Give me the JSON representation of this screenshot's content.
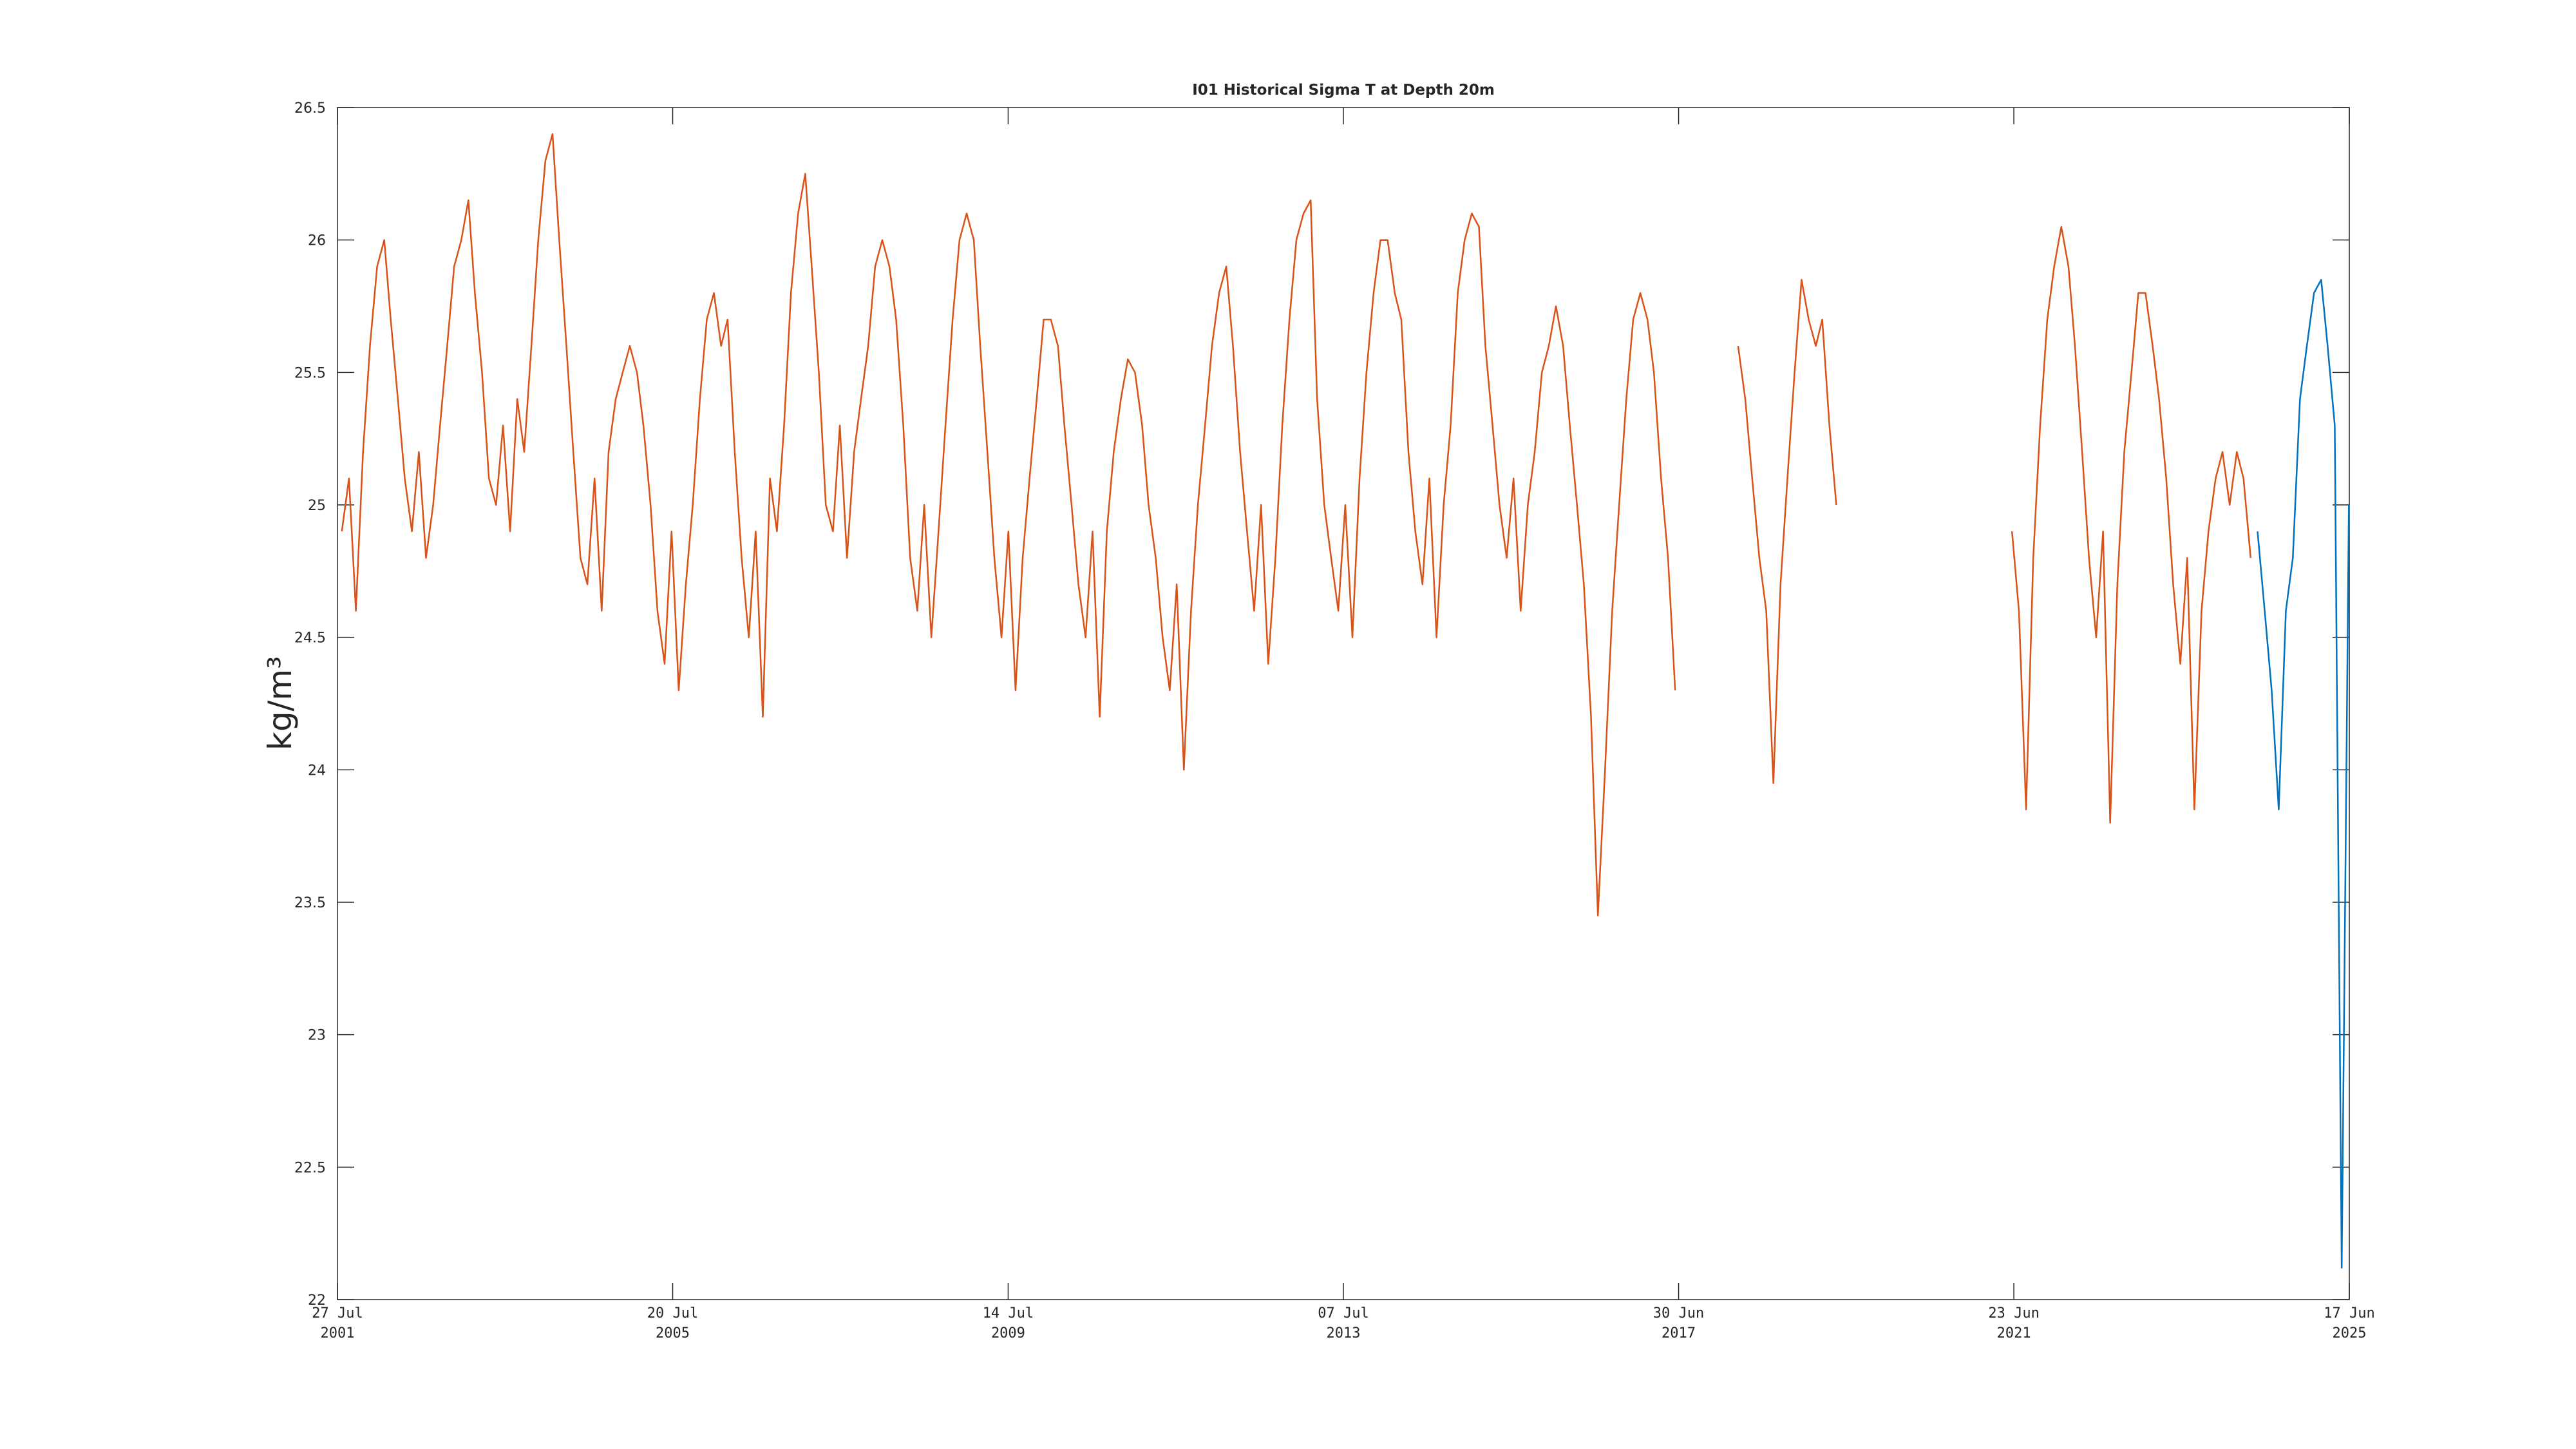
{
  "chart_data": {
    "type": "line",
    "title": "I01 Historical Sigma T at Depth 20m",
    "ylabel": "kg/m³",
    "xlim": [
      "2001-07-27",
      "2025-06-17"
    ],
    "xticks": [
      {
        "value": "2001-07-27",
        "label": "27 Jul\n2001"
      },
      {
        "value": "2005-07-20",
        "label": "20 Jul\n2005"
      },
      {
        "value": "2009-07-14",
        "label": "14 Jul\n2009"
      },
      {
        "value": "2013-07-07",
        "label": "07 Jul\n2013"
      },
      {
        "value": "2017-06-30",
        "label": "30 Jun\n2017"
      },
      {
        "value": "2021-06-23",
        "label": "23 Jun\n2021"
      },
      {
        "value": "2025-06-17",
        "label": "17 Jun\n2025"
      }
    ],
    "ylim": [
      22,
      26.5
    ],
    "yticks": [
      22,
      22.5,
      23,
      23.5,
      24,
      24.5,
      25,
      25.5,
      26,
      26.5
    ],
    "box": true,
    "series": [
      {
        "color": "#D95319",
        "x": [
          "2001-08-15",
          "2001-09-15",
          "2001-10-15",
          "2001-11-15",
          "2001-12-15",
          "2002-01-15",
          "2002-02-15",
          "2002-03-15",
          "2002-04-15",
          "2002-05-15",
          "2002-06-15",
          "2002-07-15",
          "2002-08-15",
          "2002-09-15",
          "2002-10-15",
          "2002-11-15",
          "2002-12-15",
          "2003-01-15",
          "2003-02-15",
          "2003-03-15",
          "2003-04-15",
          "2003-05-15",
          "2003-06-15",
          "2003-07-15",
          "2003-08-15",
          "2003-09-15",
          "2003-10-15",
          "2003-11-15",
          "2003-12-15",
          "2004-01-15",
          "2004-02-15",
          "2004-03-15",
          "2004-04-15",
          "2004-05-15",
          "2004-06-15",
          "2004-07-15",
          "2004-08-15",
          "2004-09-15",
          "2004-10-15",
          "2004-11-15",
          "2004-12-15",
          "2005-01-15",
          "2005-02-15",
          "2005-03-15",
          "2005-04-15",
          "2005-05-15",
          "2005-06-15",
          "2005-07-15",
          "2005-08-15",
          "2005-09-15",
          "2005-10-15",
          "2005-11-15",
          "2005-12-15",
          "2006-01-15",
          "2006-02-15",
          "2006-03-15",
          "2006-04-15",
          "2006-05-15",
          "2006-06-15",
          "2006-07-15",
          "2006-08-15",
          "2006-09-15",
          "2006-10-15",
          "2006-11-15",
          "2006-12-15",
          "2007-01-15",
          "2007-02-15",
          "2007-03-15",
          "2007-04-15",
          "2007-05-15",
          "2007-06-15",
          "2007-07-15",
          "2007-08-15",
          "2007-09-15",
          "2007-10-15",
          "2007-11-15",
          "2007-12-15",
          "2008-01-15",
          "2008-02-15",
          "2008-03-15",
          "2008-04-15",
          "2008-05-15",
          "2008-06-15",
          "2008-07-15",
          "2008-08-15",
          "2008-09-15",
          "2008-10-15",
          "2008-11-15",
          "2008-12-15",
          "2009-01-15",
          "2009-02-15",
          "2009-03-15",
          "2009-04-15",
          "2009-05-15",
          "2009-06-15",
          "2009-07-15",
          "2009-08-15",
          "2009-09-15",
          "2009-10-15",
          "2009-11-15",
          "2009-12-15",
          "2010-01-15",
          "2010-02-15",
          "2010-03-15",
          "2010-04-15",
          "2010-05-15",
          "2010-06-15",
          "2010-07-15",
          "2010-08-15",
          "2010-09-15",
          "2010-10-15",
          "2010-11-15",
          "2010-12-15",
          "2011-01-15",
          "2011-02-15",
          "2011-03-15",
          "2011-04-15",
          "2011-05-15",
          "2011-06-15",
          "2011-07-15",
          "2011-08-15",
          "2011-09-15",
          "2011-10-15",
          "2011-11-15",
          "2011-12-15",
          "2012-01-15",
          "2012-02-15",
          "2012-03-15",
          "2012-04-15",
          "2012-05-15",
          "2012-06-15",
          "2012-07-15",
          "2012-08-15",
          "2012-09-15",
          "2012-10-15",
          "2012-11-15",
          "2012-12-15",
          "2013-01-15",
          "2013-02-15",
          "2013-03-15",
          "2013-04-15",
          "2013-05-15",
          "2013-06-15",
          "2013-07-15",
          "2013-08-15",
          "2013-09-15",
          "2013-10-15",
          "2013-11-15",
          "2013-12-15",
          "2014-01-15",
          "2014-02-15",
          "2014-03-15",
          "2014-04-15",
          "2014-05-15",
          "2014-06-15",
          "2014-07-15",
          "2014-08-15",
          "2014-09-15",
          "2014-10-15",
          "2014-11-15",
          "2014-12-15",
          "2015-01-15",
          "2015-02-15",
          "2015-03-15",
          "2015-04-15",
          "2015-05-15",
          "2015-06-15",
          "2015-07-15",
          "2015-08-15",
          "2015-09-15",
          "2015-10-15",
          "2015-11-15",
          "2015-12-15",
          "2016-01-15",
          "2016-02-15",
          "2016-03-15",
          "2016-04-15",
          "2016-05-15",
          "2016-06-15",
          "2016-07-15",
          "2016-08-15",
          "2016-09-15",
          "2016-10-15",
          "2016-11-15",
          "2016-12-15",
          "2017-01-15",
          "2017-02-15",
          "2017-03-15",
          "2017-04-15",
          "2017-05-15",
          "2017-06-15",
          "2017-10-15",
          "2018-03-15",
          "2018-04-15",
          "2018-05-15",
          "2018-06-15",
          "2018-07-15",
          "2018-08-15",
          "2018-09-15",
          "2018-10-15",
          "2018-11-15",
          "2018-12-15",
          "2019-01-15",
          "2019-02-15",
          "2019-03-15",
          "2019-04-15",
          "2019-05-15",
          "2020-06-15",
          "2021-06-15",
          "2021-07-15",
          "2021-08-15",
          "2021-09-15",
          "2021-10-15",
          "2021-11-15",
          "2021-12-15",
          "2022-01-15",
          "2022-02-15",
          "2022-03-15",
          "2022-04-15",
          "2022-05-15",
          "2022-06-15",
          "2022-07-15",
          "2022-08-15",
          "2022-09-15",
          "2022-10-15",
          "2022-11-15",
          "2022-12-15",
          "2023-01-15",
          "2023-02-15",
          "2023-03-15",
          "2023-04-15",
          "2023-05-15",
          "2023-06-15",
          "2023-07-15",
          "2023-08-15",
          "2023-09-15",
          "2023-10-15",
          "2023-11-15",
          "2023-12-15",
          "2024-01-15",
          "2024-02-15",
          "2024-03-15",
          "2024-04-15"
        ],
        "values": [
          24.9,
          25.1,
          24.6,
          25.2,
          25.6,
          25.9,
          26.0,
          25.7,
          25.4,
          25.1,
          24.9,
          25.2,
          24.8,
          25.0,
          25.3,
          25.6,
          25.9,
          26.0,
          26.15,
          25.8,
          25.5,
          25.1,
          25.0,
          25.3,
          24.9,
          25.4,
          25.2,
          25.6,
          26.0,
          26.3,
          26.4,
          26.0,
          25.6,
          25.2,
          24.8,
          24.7,
          25.1,
          24.6,
          25.2,
          25.4,
          25.5,
          25.6,
          25.5,
          25.3,
          25.0,
          24.6,
          24.4,
          24.9,
          24.3,
          24.7,
          25.0,
          25.4,
          25.7,
          25.8,
          25.6,
          25.7,
          25.2,
          24.8,
          24.5,
          24.9,
          24.2,
          25.1,
          24.9,
          25.3,
          25.8,
          26.1,
          26.25,
          25.9,
          25.5,
          25.0,
          24.9,
          25.3,
          24.8,
          25.2,
          25.4,
          25.6,
          25.9,
          26.0,
          25.9,
          25.7,
          25.3,
          24.8,
          24.6,
          25.0,
          24.5,
          24.9,
          25.3,
          25.7,
          26.0,
          26.1,
          26.0,
          25.6,
          25.2,
          24.8,
          24.5,
          24.9,
          24.3,
          24.8,
          25.1,
          25.4,
          25.7,
          25.7,
          25.6,
          25.3,
          25.0,
          24.7,
          24.5,
          24.9,
          24.2,
          24.9,
          25.2,
          25.4,
          25.55,
          25.5,
          25.3,
          25.0,
          24.8,
          24.5,
          24.3,
          24.7,
          24.0,
          24.6,
          25.0,
          25.3,
          25.6,
          25.8,
          25.9,
          25.6,
          25.2,
          24.9,
          24.6,
          25.0,
          24.4,
          24.8,
          25.3,
          25.7,
          26.0,
          26.1,
          26.15,
          25.4,
          25.0,
          24.8,
          24.6,
          25.0,
          24.5,
          25.1,
          25.5,
          25.8,
          26.0,
          26.0,
          25.8,
          25.7,
          25.2,
          24.9,
          24.7,
          25.1,
          24.5,
          25.0,
          25.3,
          25.8,
          26.0,
          26.1,
          26.05,
          25.6,
          25.3,
          25.0,
          24.8,
          25.1,
          24.6,
          25.0,
          25.2,
          25.5,
          25.6,
          25.75,
          25.6,
          25.3,
          25.0,
          24.7,
          24.2,
          23.45,
          24.0,
          24.6,
          25.0,
          25.4,
          25.7,
          25.8,
          25.7,
          25.5,
          25.1,
          24.8,
          24.3,
          null,
          25.6,
          25.4,
          25.1,
          24.8,
          24.6,
          23.95,
          24.7,
          25.1,
          25.5,
          25.85,
          25.7,
          25.6,
          25.7,
          25.3,
          25.0,
          null,
          24.9,
          24.6,
          23.85,
          24.8,
          25.3,
          25.7,
          25.9,
          26.05,
          25.9,
          25.6,
          25.2,
          24.8,
          24.5,
          24.9,
          23.8,
          24.7,
          25.2,
          25.5,
          25.8,
          25.8,
          25.6,
          25.4,
          25.1,
          24.7,
          24.4,
          24.8,
          23.85,
          24.6,
          24.9,
          25.1,
          25.2,
          25.0,
          25.2,
          25.1,
          24.8
        ]
      },
      {
        "color": "#0072BD",
        "x": [
          "2024-05-15",
          "2024-06-15",
          "2024-07-15",
          "2024-08-15",
          "2024-09-15",
          "2024-10-15",
          "2024-11-15",
          "2024-12-15",
          "2025-01-15",
          "2025-02-15",
          "2025-03-15",
          "2025-04-15",
          "2025-05-15",
          "2025-06-15"
        ],
        "values": [
          24.9,
          24.6,
          24.3,
          23.85,
          24.6,
          24.8,
          25.4,
          25.6,
          25.8,
          25.85,
          25.6,
          25.3,
          22.12,
          25.0
        ]
      }
    ]
  }
}
